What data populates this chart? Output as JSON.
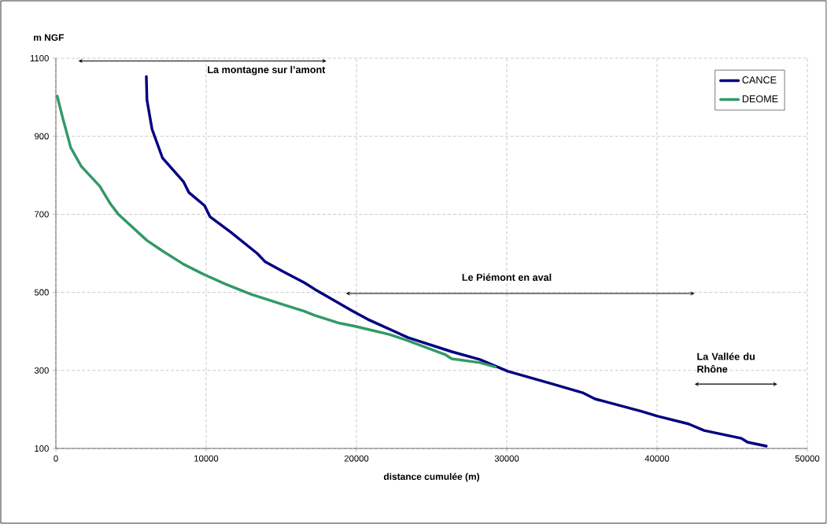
{
  "chart_data": {
    "type": "line",
    "xlabel": "distance cumulée (m)",
    "ylabel": "m NGF",
    "xlim": [
      0,
      50000
    ],
    "ylim": [
      100,
      1100
    ],
    "xticks": [
      0,
      10000,
      20000,
      30000,
      40000,
      50000
    ],
    "yticks": [
      100,
      300,
      500,
      700,
      900,
      1100
    ],
    "grid": true,
    "legend": "top right",
    "series": [
      {
        "name": "CANCE",
        "color": "#000080",
        "x": [
          6020,
          6060,
          6400,
          7100,
          8500,
          8850,
          9900,
          10250,
          11640,
          13390,
          13910,
          15130,
          16530,
          17230,
          19710,
          20750,
          23440,
          26340,
          28200,
          30070,
          32970,
          35040,
          35870,
          38980,
          40020,
          42090,
          43130,
          45610,
          46020,
          47270
        ],
        "values": [
          1053,
          993,
          918,
          844,
          783,
          756,
          722,
          694,
          654,
          600,
          579,
          553,
          525,
          508,
          453,
          431,
          384,
          348,
          328,
          298,
          266,
          243,
          227,
          195,
          183,
          163,
          146,
          126,
          116,
          106
        ]
      },
      {
        "name": "DEOME",
        "color": "#339966",
        "x": [
          90,
          470,
          990,
          1690,
          2920,
          3610,
          4140,
          6060,
          7100,
          8500,
          9900,
          11290,
          13000,
          15000,
          16500,
          17230,
          18880,
          19920,
          22200,
          23440,
          25930,
          26340,
          28200,
          29240
        ],
        "values": [
          1003,
          945,
          871,
          823,
          772,
          728,
          701,
          633,
          606,
          572,
          545,
          521,
          495,
          470,
          452,
          441,
          421,
          413,
          392,
          376,
          340,
          330,
          320,
          309
        ]
      }
    ],
    "annotations": [
      "La montagne sur l’amont",
      "Le Piémont en aval",
      "La Vallée du Rhône"
    ]
  }
}
